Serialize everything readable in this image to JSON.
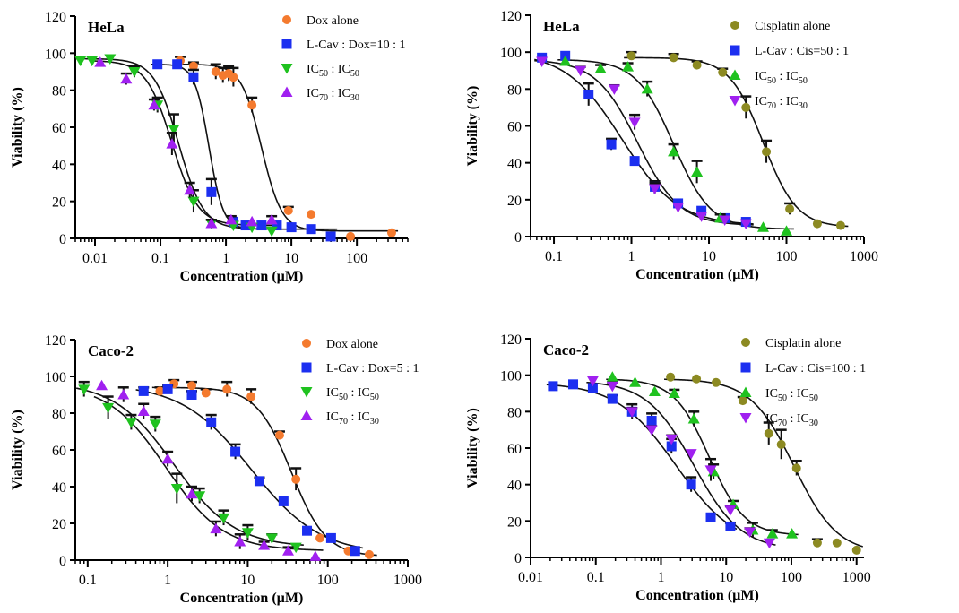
{
  "chart_data": [
    {
      "type": "scatter",
      "cell_label": "HeLa",
      "xlabel": "Concentration (µM)",
      "ylabel": "Viability (%)",
      "x_scale": "log",
      "xlim": [
        0.005,
        600
      ],
      "ylim": [
        0,
        120
      ],
      "x_ticks": [
        0.01,
        0.1,
        1,
        10,
        100
      ],
      "x_tick_labels": [
        "0.01",
        "0.1",
        "1",
        "10",
        "100"
      ],
      "y_ticks": [
        0,
        20,
        40,
        60,
        80,
        100,
        120
      ],
      "legend_position": "top-right",
      "series": [
        {
          "name": "Dox alone",
          "marker": "circle",
          "color": "#f47a2e",
          "x": [
            0.2,
            0.32,
            0.7,
            0.9,
            1.1,
            1.3,
            2.5,
            9,
            20,
            80,
            340
          ],
          "y": [
            96,
            93,
            90,
            88,
            89,
            87,
            72,
            15,
            13,
            1,
            3
          ],
          "err": [
            2,
            2,
            4,
            4,
            4,
            5,
            4,
            2,
            0,
            0,
            0
          ],
          "fit": {
            "top": 94,
            "bottom": 4,
            "ec50": 3.5,
            "hill": 2.8
          }
        },
        {
          "name": "L-Cav : Dox=10 : 1",
          "marker": "square",
          "color": "#1c2ff0",
          "x": [
            0.09,
            0.18,
            0.32,
            0.6,
            1.3,
            2,
            3.5,
            6,
            10,
            20,
            40
          ],
          "y": [
            94,
            94,
            87,
            25,
            9,
            7,
            7,
            7,
            6,
            5,
            1
          ],
          "err": [
            0,
            0,
            4,
            7,
            0,
            0,
            0,
            0,
            0,
            0,
            0
          ],
          "fit": {
            "top": 94,
            "bottom": 5,
            "ec50": 0.55,
            "hill": 4
          }
        },
        {
          "name": "IC50 : IC50",
          "name_parts": {
            "base1": "IC",
            "sub1": "50",
            "sep": " : ",
            "base2": "IC",
            "sub2": "50"
          },
          "marker": "triangle-down",
          "color": "#1fc21f",
          "x": [
            0.006,
            0.009,
            0.017,
            0.04,
            0.09,
            0.16,
            0.32,
            0.6,
            1.3,
            2.5,
            5
          ],
          "y": [
            96,
            96,
            97,
            90,
            72,
            59,
            20,
            8,
            7,
            6,
            4
          ],
          "err": [
            0,
            0,
            0,
            3,
            4,
            8,
            6,
            2,
            0,
            0,
            0
          ],
          "fit": {
            "top": 97,
            "bottom": 5,
            "ec50": 0.19,
            "hill": 2.3
          }
        },
        {
          "name": "IC70 : IC30",
          "name_parts": {
            "base1": "IC",
            "sub1": "70",
            "sep": " : ",
            "base2": "IC",
            "sub2": "30"
          },
          "marker": "triangle-up",
          "color": "#a020f0",
          "x": [
            0.012,
            0.03,
            0.08,
            0.15,
            0.28,
            0.6,
            1.2,
            2.5,
            5
          ],
          "y": [
            95,
            86,
            72,
            51,
            26,
            8,
            10,
            9,
            10
          ],
          "err": [
            0,
            3,
            3,
            6,
            4,
            2,
            2,
            0,
            2
          ],
          "fit": {
            "top": 96,
            "bottom": 7,
            "ec50": 0.15,
            "hill": 2.2
          }
        }
      ]
    },
    {
      "type": "scatter",
      "cell_label": "HeLa",
      "xlabel": "Concentration (µM)",
      "ylabel": "Viability (%)",
      "x_scale": "log",
      "xlim": [
        0.05,
        1000
      ],
      "ylim": [
        0,
        120
      ],
      "x_ticks": [
        0.1,
        1,
        10,
        100,
        1000
      ],
      "x_tick_labels": [
        "0.1",
        "1",
        "10",
        "100",
        "1000"
      ],
      "y_ticks": [
        0,
        20,
        40,
        60,
        80,
        100,
        120
      ],
      "legend_position": "top-right",
      "series": [
        {
          "name": "Cisplatin alone",
          "marker": "circle",
          "color": "#8c8a22",
          "x": [
            1,
            3.5,
            7,
            15,
            30,
            55,
            110,
            250,
            500
          ],
          "y": [
            98,
            97,
            93,
            89,
            70,
            46,
            15,
            7,
            6
          ],
          "err": [
            2,
            2,
            2,
            2,
            6,
            6,
            3,
            0,
            0
          ],
          "fit": {
            "top": 97,
            "bottom": 5,
            "ec50": 50,
            "hill": 2
          }
        },
        {
          "name": "L-Cav : Cis=50 : 1",
          "marker": "square",
          "color": "#1c2ff0",
          "x": [
            0.07,
            0.14,
            0.28,
            0.55,
            1.1,
            2,
            4,
            8,
            16,
            30
          ],
          "y": [
            97,
            98,
            77,
            50,
            41,
            27,
            18,
            14,
            10,
            8
          ],
          "err": [
            0,
            0,
            6,
            3,
            0,
            3,
            0,
            0,
            0,
            0
          ],
          "fit": {
            "top": 100,
            "bottom": 6,
            "ec50": 0.75,
            "hill": 1.2
          }
        },
        {
          "name": "IC50 : IC50",
          "name_parts": {
            "base1": "IC",
            "sub1": "50",
            "sep": " : ",
            "base2": "IC",
            "sub2": "50"
          },
          "marker": "triangle-up",
          "color": "#1fc21f",
          "x": [
            0.14,
            0.4,
            0.9,
            1.6,
            3.5,
            7,
            14,
            50,
            100
          ],
          "y": [
            95,
            91,
            92,
            80,
            46,
            35,
            10,
            5,
            3
          ],
          "err": [
            0,
            2,
            2,
            4,
            4,
            6,
            2,
            0,
            0
          ],
          "fit": {
            "top": 96,
            "bottom": 4,
            "ec50": 3.5,
            "hill": 1.8
          }
        },
        {
          "name": "IC70 : IC30",
          "name_parts": {
            "base1": "IC",
            "sub1": "70",
            "sep": " : ",
            "base2": "IC",
            "sub2": "30"
          },
          "marker": "triangle-down",
          "color": "#a020f0",
          "x": [
            0.07,
            0.22,
            0.6,
            1.1,
            2,
            4,
            8,
            16,
            30
          ],
          "y": [
            95,
            90,
            80,
            62,
            26,
            16,
            11,
            9,
            7
          ],
          "err": [
            0,
            2,
            2,
            4,
            3,
            0,
            0,
            0,
            0
          ],
          "fit": {
            "top": 96,
            "bottom": 6,
            "ec50": 1.2,
            "hill": 1.6
          }
        }
      ]
    },
    {
      "type": "scatter",
      "cell_label": "Caco-2",
      "xlabel": "Concentration (µM)",
      "ylabel": "Viability (%)",
      "x_scale": "log",
      "xlim": [
        0.07,
        1000
      ],
      "ylim": [
        0,
        120
      ],
      "x_ticks": [
        0.1,
        1,
        10,
        100,
        1000
      ],
      "x_tick_labels": [
        "0.1",
        "1",
        "10",
        "100",
        "1000"
      ],
      "y_ticks": [
        0,
        20,
        40,
        60,
        80,
        100,
        120
      ],
      "legend_position": "top-right",
      "series": [
        {
          "name": "Dox alone",
          "marker": "circle",
          "color": "#f47a2e",
          "x": [
            0.8,
            1.2,
            2,
            3,
            5.5,
            11,
            25,
            40,
            80,
            180,
            330
          ],
          "y": [
            92,
            96,
            95,
            91,
            93,
            89,
            68,
            44,
            12,
            5,
            3
          ],
          "err": [
            2,
            2,
            2,
            2,
            4,
            4,
            2,
            6,
            0,
            0,
            0
          ],
          "fit": {
            "top": 94,
            "bottom": 2,
            "ec50": 35,
            "hill": 2
          }
        },
        {
          "name": "L-Cav : Dox=5 : 1",
          "marker": "square",
          "color": "#1c2ff0",
          "x": [
            0.5,
            1,
            2,
            3.5,
            7,
            14,
            28,
            55,
            110,
            220
          ],
          "y": [
            92,
            93,
            90,
            75,
            59,
            43,
            32,
            16,
            12,
            5
          ],
          "err": [
            2,
            2,
            2,
            4,
            4,
            2,
            0,
            0,
            0,
            0
          ],
          "fit": {
            "top": 96,
            "bottom": 3,
            "ec50": 11,
            "hill": 1
          }
        },
        {
          "name": "IC50 : IC50",
          "name_parts": {
            "base1": "IC",
            "sub1": "50",
            "sep": " : ",
            "base2": "IC",
            "sub2": "50"
          },
          "marker": "triangle-down",
          "color": "#1fc21f",
          "x": [
            0.09,
            0.18,
            0.35,
            0.7,
            1.3,
            2.5,
            5,
            10,
            20,
            40
          ],
          "y": [
            93,
            83,
            75,
            74,
            39,
            35,
            23,
            15,
            12,
            7
          ],
          "err": [
            4,
            6,
            4,
            4,
            8,
            4,
            4,
            4,
            2,
            0
          ],
          "fit": {
            "top": 97,
            "bottom": 7,
            "ec50": 1.2,
            "hill": 1.15
          }
        },
        {
          "name": "IC70 : IC30",
          "name_parts": {
            "base1": "IC",
            "sub1": "70",
            "sep": " : ",
            "base2": "IC",
            "sub2": "30"
          },
          "marker": "triangle-up",
          "color": "#a020f0",
          "x": [
            0.15,
            0.28,
            0.5,
            1,
            2,
            4,
            8,
            16,
            32,
            70
          ],
          "y": [
            95,
            90,
            81,
            55,
            36,
            17,
            10,
            8,
            5,
            2
          ],
          "err": [
            0,
            4,
            4,
            4,
            4,
            4,
            4,
            2,
            2,
            0
          ],
          "fit": {
            "top": 96,
            "bottom": 5,
            "ec50": 0.95,
            "hill": 1.2
          }
        }
      ]
    },
    {
      "type": "scatter",
      "cell_label": "Caco-2",
      "xlabel": "Concentration (µM)",
      "ylabel": "Viability (%)",
      "x_scale": "log",
      "xlim": [
        0.01,
        1300
      ],
      "ylim": [
        0,
        120
      ],
      "x_ticks": [
        0.01,
        0.1,
        1,
        10,
        100,
        1000
      ],
      "x_tick_labels": [
        "0.01",
        "0.1",
        "1",
        "10",
        "100",
        "1000"
      ],
      "y_ticks": [
        0,
        20,
        40,
        60,
        80,
        100,
        120
      ],
      "legend_position": "top-right",
      "series": [
        {
          "name": "Cisplatin alone",
          "marker": "circle",
          "color": "#8c8a22",
          "x": [
            1.4,
            3.5,
            7,
            18,
            45,
            70,
            120,
            250,
            500,
            1000
          ],
          "y": [
            99,
            98,
            96,
            86,
            68,
            62,
            49,
            8,
            8,
            4
          ],
          "err": [
            0,
            0,
            0,
            2,
            6,
            8,
            4,
            2,
            0,
            0
          ],
          "fit": {
            "top": 98,
            "bottom": 2,
            "ec50": 110,
            "hill": 1.3
          }
        },
        {
          "name": "L-Cav : Cis=100 : 1",
          "marker": "square",
          "color": "#1c2ff0",
          "x": [
            0.022,
            0.045,
            0.09,
            0.18,
            0.36,
            0.72,
            1.45,
            2.9,
            5.8,
            11.6
          ],
          "y": [
            94,
            95,
            93,
            87,
            80,
            75,
            61,
            40,
            22,
            17
          ],
          "err": [
            0,
            0,
            0,
            2,
            4,
            4,
            4,
            4,
            0,
            2
          ],
          "fit": {
            "top": 96,
            "bottom": 5,
            "ec50": 1.7,
            "hill": 0.95
          }
        },
        {
          "name": "IC50 : IC50",
          "name_parts": {
            "base1": "IC",
            "sub1": "50",
            "sep": " : ",
            "base2": "IC",
            "sub2": "50"
          },
          "marker": "triangle-up",
          "color": "#1fc21f",
          "x": [
            0.18,
            0.4,
            0.8,
            1.6,
            3.2,
            6.4,
            12.8,
            25.6,
            51.2,
            102
          ],
          "y": [
            99,
            96,
            91,
            90,
            76,
            47,
            29,
            15,
            13,
            13
          ],
          "err": [
            0,
            0,
            0,
            2,
            4,
            4,
            2,
            4,
            2,
            0
          ],
          "fit": {
            "top": 98,
            "bottom": 12,
            "ec50": 5.5,
            "hill": 1.6
          }
        },
        {
          "name": "IC70 : IC30",
          "name_parts": {
            "base1": "IC",
            "sub1": "70",
            "sep": " : ",
            "base2": "IC",
            "sub2": "30"
          },
          "marker": "triangle-down",
          "color": "#a020f0",
          "x": [
            0.09,
            0.18,
            0.36,
            0.72,
            1.45,
            2.9,
            5.8,
            11.6,
            23,
            46
          ],
          "y": [
            97,
            94,
            80,
            70,
            65,
            57,
            48,
            26,
            14,
            8
          ],
          "err": [
            0,
            2,
            2,
            2,
            2,
            0,
            6,
            2,
            2,
            0
          ],
          "fit": {
            "top": 97,
            "bottom": 4,
            "ec50": 3.2,
            "hill": 1.2
          }
        }
      ]
    }
  ]
}
